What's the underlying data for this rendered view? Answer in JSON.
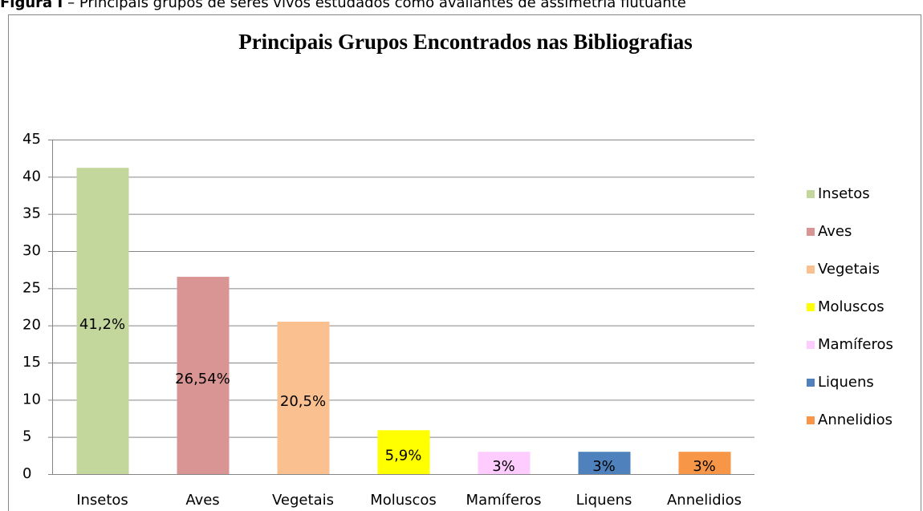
{
  "chart_data": {
    "type": "bar",
    "caption_label": "Figura I",
    "caption": "– Principais grupos de seres vivos estudados como avaliantes de assimetria flutuante",
    "title": "Principais Grupos Encontrados nas Bibliografias",
    "categories": [
      "Insetos",
      "Aves",
      "Vegetais",
      "Moluscos",
      "Mamíferos",
      "Liquens",
      "Annelidios"
    ],
    "values": [
      41.2,
      26.54,
      20.5,
      5.9,
      3,
      3,
      3
    ],
    "value_labels": [
      "41,2%",
      "26,54%",
      "20,5%",
      "5,9%",
      "3%",
      "3%",
      "3%"
    ],
    "colors": [
      "#c3d69b",
      "#d99594",
      "#fac08f",
      "#ffff00",
      "#ffccff",
      "#4f81bd",
      "#f79646"
    ],
    "ylim": [
      0,
      45
    ],
    "yticks": [
      0,
      5,
      10,
      15,
      20,
      25,
      30,
      35,
      40,
      45
    ],
    "grid": true,
    "legend": "right"
  }
}
